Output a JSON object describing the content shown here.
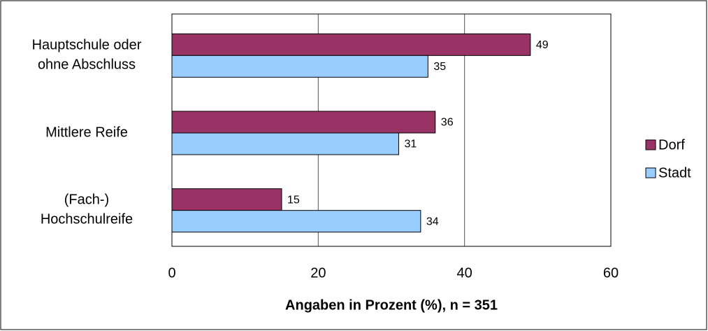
{
  "chart_data": {
    "type": "bar",
    "orientation": "horizontal",
    "x_label": "Angaben in Prozent (%), n = 351",
    "categories": [
      "Hauptschule oder\nohne Abschluss",
      "Mittlere Reife",
      "(Fach-)\nHochschulreife"
    ],
    "series": [
      {
        "name": "Dorf",
        "color": "#993366",
        "values": [
          49,
          36,
          15
        ]
      },
      {
        "name": "Stadt",
        "color": "#99ccff",
        "values": [
          35,
          31,
          34
        ]
      }
    ],
    "xlim": [
      0,
      60
    ],
    "xticks": [
      0,
      20,
      40,
      60
    ],
    "grid": true,
    "legend": "right"
  }
}
